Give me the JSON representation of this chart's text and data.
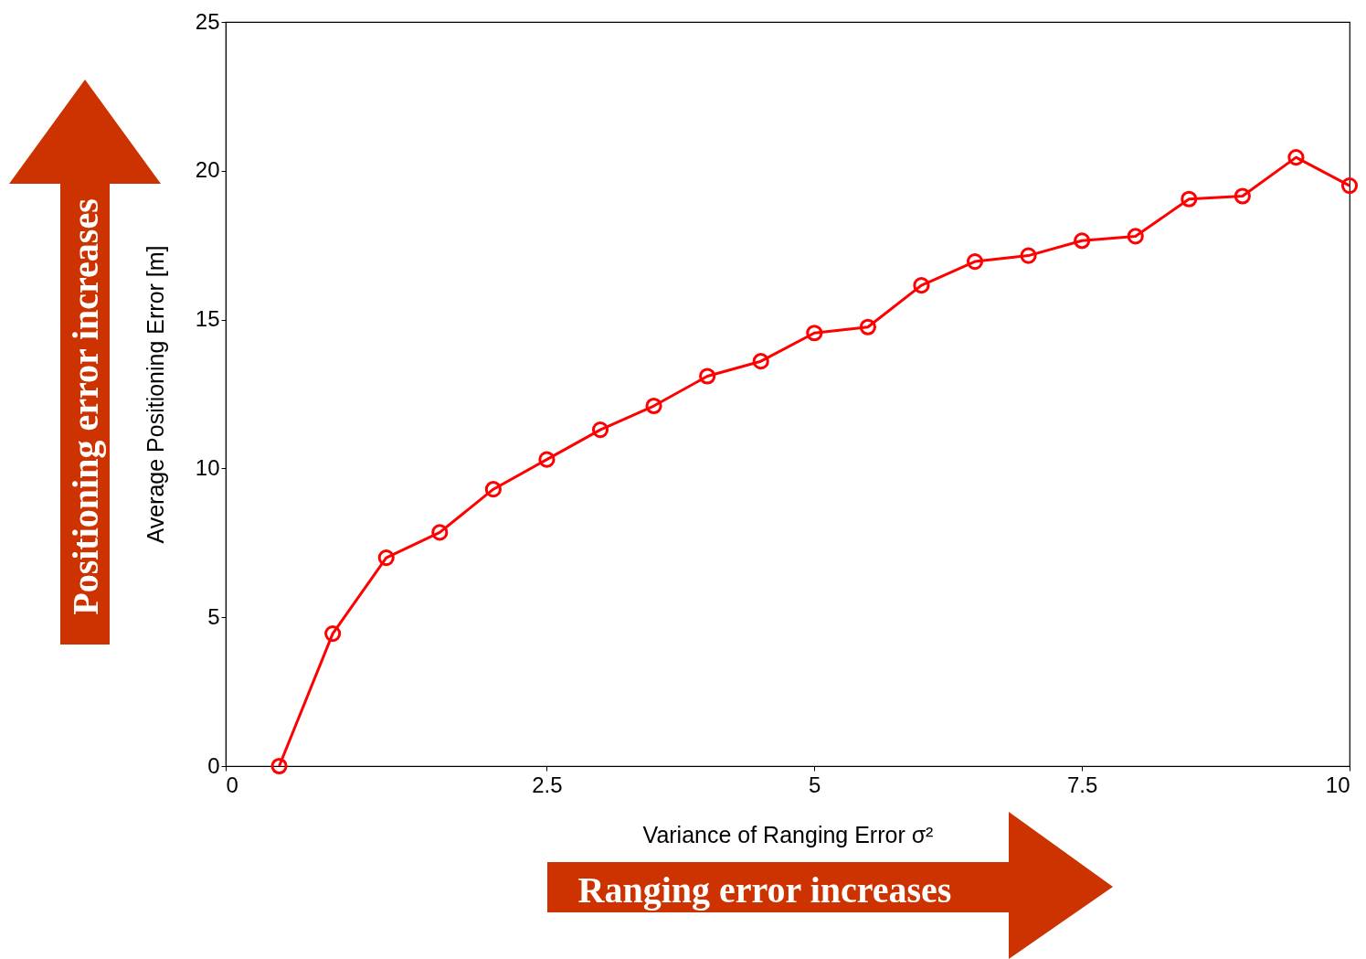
{
  "chart_data": {
    "type": "line",
    "xlabel": "Variance of Ranging Error  σ²",
    "ylabel": "Average Positioning Error [m]",
    "x": [
      0,
      0.5,
      1,
      1.5,
      2,
      2.5,
      3,
      3.5,
      4,
      4.5,
      5,
      5.5,
      6,
      6.5,
      7,
      7.5,
      8,
      8.5,
      9,
      9.5,
      10
    ],
    "series": [
      {
        "color": "#ff0000",
        "values": [
          0,
          4.45,
          7.0,
          7.85,
          9.3,
          10.3,
          11.3,
          12.1,
          13.1,
          13.6,
          14.55,
          14.75,
          16.15,
          16.95,
          17.15,
          17.65,
          17.8,
          19.05,
          19.15,
          20.45,
          19.5
        ]
      }
    ],
    "xlim": [
      -0.5,
      10
    ],
    "xticks": [
      {
        "value": -0.5,
        "label": "0"
      },
      2.5,
      5,
      7.5,
      10
    ],
    "ylim": [
      0,
      25
    ],
    "yticks": [
      0,
      5,
      10,
      15,
      20,
      25
    ],
    "grid": false,
    "marker": "circle",
    "line_style": "solid",
    "annotations": [
      "Positioning error increases",
      "Ranging error increases"
    ]
  }
}
